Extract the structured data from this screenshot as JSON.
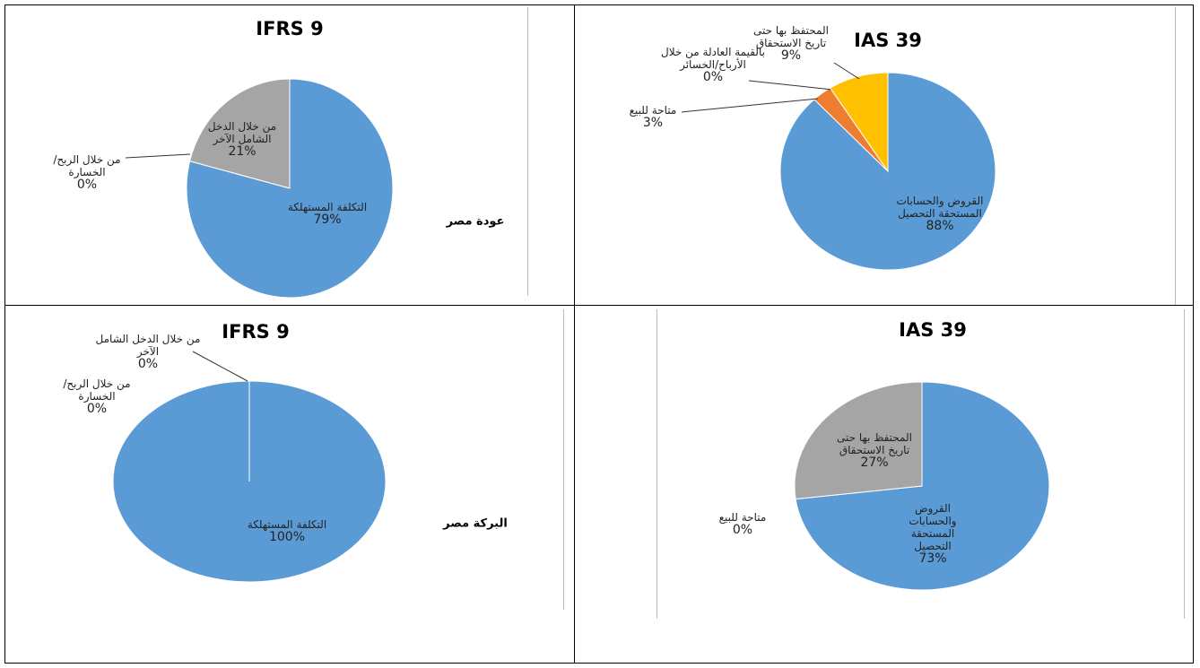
{
  "chart_data": [
    {
      "type": "pie",
      "title": "IFRS 9",
      "categories": [
        "التكلفة المستهلكة",
        "من خلال الربح/الخسارة",
        "من خلال الدخل الشامل الآخر"
      ],
      "values": [
        79,
        0,
        21
      ],
      "value_labels": [
        "79%",
        "0%",
        "21%"
      ],
      "colors": [
        "#5b9bd5",
        "#ed7d31",
        "#a5a5a5"
      ]
    },
    {
      "type": "pie",
      "title": "IAS 39",
      "categories": [
        "القروض والحسابات المستحقة التحصيل",
        "متاحة للبيع",
        "بالقيمة العادلة من خلال الأرباح/الخسائر",
        "المحتفظ بها حتى تاريخ الاستحقاق"
      ],
      "values": [
        88,
        3,
        0,
        9
      ],
      "value_labels": [
        "88%",
        "3%",
        "0%",
        "9%"
      ],
      "colors": [
        "#5b9bd5",
        "#ed7d31",
        "#a5a5a5",
        "#ffc000"
      ]
    },
    {
      "type": "pie",
      "title": "IFRS 9",
      "categories": [
        "التكلفة المستهلكة",
        "من خلال الربح/الخسارة",
        "من خلال الدخل الشامل الآخر"
      ],
      "values": [
        100,
        0,
        0
      ],
      "value_labels": [
        "100%",
        "0%",
        "0%"
      ],
      "colors": [
        "#5b9bd5",
        "#ed7d31",
        "#a5a5a5"
      ]
    },
    {
      "type": "pie",
      "title": "IAS 39",
      "categories": [
        "القروض والحسابات المستحقة التحصيل",
        "متاحة للبيع",
        "المحتفظ بها حتى تاريخ الاستحقاق"
      ],
      "values": [
        73,
        0,
        27
      ],
      "value_labels": [
        "73%",
        "0%",
        "27%"
      ],
      "colors": [
        "#5b9bd5",
        "#ed7d31",
        "#a5a5a5"
      ]
    }
  ],
  "row_labels": [
    "عودة مصر",
    "البركة مصر"
  ]
}
